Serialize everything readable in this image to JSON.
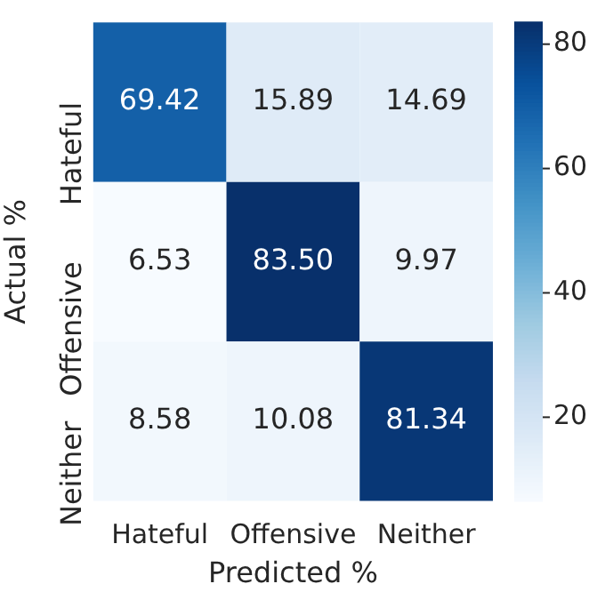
{
  "chart_data": {
    "type": "heatmap",
    "xlabel": "Predicted %",
    "ylabel": "Actual %",
    "categories": [
      "Hateful",
      "Offensive",
      "Neither"
    ],
    "y_categories": [
      "Hateful",
      "Offensive",
      "Neither"
    ],
    "cells": [
      [
        69.42,
        15.89,
        14.69
      ],
      [
        6.53,
        83.5,
        9.97
      ],
      [
        8.58,
        10.08,
        81.34
      ]
    ],
    "cell_labels": [
      [
        "69.42",
        "15.89",
        "14.69"
      ],
      [
        "6.53",
        "83.50",
        "9.97"
      ],
      [
        "8.58",
        "10.08",
        "81.34"
      ]
    ],
    "clim": [
      6.53,
      83.5
    ],
    "cticks": [
      20,
      40,
      60,
      80
    ],
    "data_labels": true
  }
}
